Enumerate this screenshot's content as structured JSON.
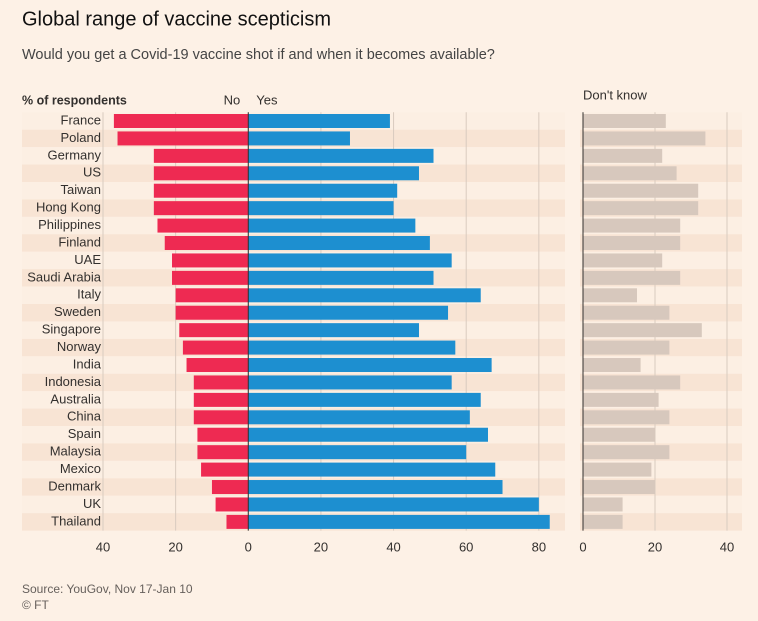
{
  "chart_data": [
    {
      "type": "hbar",
      "title": "Global range of vaccine scepticism",
      "subtitle": "Would you get a Covid-19 vaccine shot if and when it becomes available?",
      "axis_label": "% of respondents",
      "source": "Source: YouGov, Nov 17-Jan 10",
      "credit": "© FT",
      "categories": [
        "France",
        "Poland",
        "Germany",
        "US",
        "Taiwan",
        "Hong Kong",
        "Philippines",
        "Finland",
        "UAE",
        "Saudi Arabia",
        "Italy",
        "Sweden",
        "Singapore",
        "Norway",
        "India",
        "Indonesia",
        "Australia",
        "China",
        "Spain",
        "Malaysia",
        "Mexico",
        "Denmark",
        "UK",
        "Thailand"
      ],
      "series": [
        {
          "name": "No",
          "color": "#ee2a52",
          "values": [
            -37,
            -36,
            -26,
            -26,
            -26,
            -26,
            -25,
            -23,
            -21,
            -21,
            -20,
            -20,
            -19,
            -18,
            -17,
            -15,
            -15,
            -15,
            -14,
            -14,
            -13,
            -10,
            -9,
            -6
          ]
        },
        {
          "name": "Yes",
          "color": "#1d8fd0",
          "values": [
            39,
            28,
            51,
            47,
            41,
            40,
            46,
            50,
            56,
            51,
            64,
            55,
            47,
            57,
            67,
            56,
            64,
            61,
            66,
            60,
            68,
            70,
            80,
            83
          ]
        }
      ],
      "xlim": [
        -40,
        85
      ],
      "xticks": [
        {
          "value": -40,
          "label": "40"
        },
        {
          "value": -20,
          "label": "20"
        },
        0,
        20,
        40,
        60,
        80
      ],
      "grid": true
    },
    {
      "type": "hbar",
      "title": "Don't know",
      "color": "#d7c8bd",
      "values": [
        23,
        34,
        22,
        26,
        32,
        32,
        27,
        27,
        22,
        27,
        15,
        24,
        33,
        24,
        16,
        27,
        21,
        24,
        20,
        24,
        19,
        20,
        11,
        11
      ],
      "xlim": [
        0,
        45
      ],
      "xticks": [
        0,
        20,
        40
      ],
      "grid": true
    }
  ]
}
